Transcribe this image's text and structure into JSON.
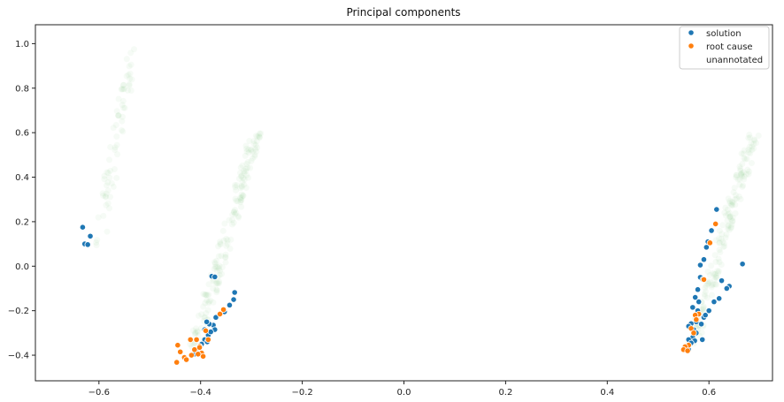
{
  "chart_data": {
    "type": "scatter",
    "title": "Principal components",
    "xlabel": "",
    "ylabel": "",
    "xlim": [
      -0.725,
      0.725
    ],
    "ylim": [
      -0.515,
      1.085
    ],
    "xticks": [
      -0.6,
      -0.4,
      -0.2,
      0.0,
      0.2,
      0.4,
      0.6
    ],
    "xtick_labels": [
      "−0.6",
      "−0.4",
      "−0.2",
      "0.0",
      "0.2",
      "0.4",
      "0.6"
    ],
    "yticks": [
      -0.4,
      -0.2,
      0.0,
      0.2,
      0.4,
      0.6,
      0.8,
      1.0
    ],
    "ytick_labels": [
      "−0.4",
      "−0.2",
      "0.0",
      "0.2",
      "0.4",
      "0.6",
      "0.8",
      "1.0"
    ],
    "grid": false,
    "legend_position": "top-right",
    "series": [
      {
        "name": "unannotated",
        "color": "#8fc98f",
        "opacity": 0.08,
        "clusters": [
          {
            "from": [
              -0.6,
              0.1
            ],
            "to": [
              -0.535,
              0.97
            ],
            "spread": 0.012,
            "count": 70
          },
          {
            "from": [
              -0.41,
              -0.36
            ],
            "to": [
              -0.29,
              0.59
            ],
            "spread": 0.012,
            "count": 170
          },
          {
            "from": [
              0.57,
              -0.33
            ],
            "to": [
              0.69,
              0.61
            ],
            "spread": 0.012,
            "count": 170
          }
        ]
      },
      {
        "name": "solution",
        "color": "#1f77b4",
        "points": [
          [
            -0.632,
            0.175
          ],
          [
            -0.628,
            0.1
          ],
          [
            -0.622,
            0.097
          ],
          [
            -0.617,
            0.135
          ],
          [
            -0.378,
            -0.045
          ],
          [
            -0.372,
            -0.048
          ],
          [
            -0.333,
            -0.118
          ],
          [
            -0.335,
            -0.15
          ],
          [
            -0.343,
            -0.175
          ],
          [
            -0.353,
            -0.205
          ],
          [
            -0.37,
            -0.23
          ],
          [
            -0.375,
            -0.265
          ],
          [
            -0.383,
            -0.26
          ],
          [
            -0.388,
            -0.25
          ],
          [
            -0.392,
            -0.285
          ],
          [
            -0.385,
            -0.31
          ],
          [
            -0.392,
            -0.33
          ],
          [
            -0.398,
            -0.35
          ],
          [
            -0.402,
            -0.365
          ],
          [
            -0.408,
            -0.38
          ],
          [
            -0.412,
            -0.395
          ],
          [
            -0.405,
            -0.392
          ],
          [
            -0.398,
            -0.387
          ],
          [
            -0.372,
            -0.285
          ],
          [
            -0.38,
            -0.295
          ],
          [
            -0.387,
            -0.34
          ],
          [
            0.615,
            0.255
          ],
          [
            0.605,
            0.16
          ],
          [
            0.598,
            0.11
          ],
          [
            0.595,
            0.085
          ],
          [
            0.59,
            0.03
          ],
          [
            0.583,
            0.005
          ],
          [
            0.666,
            0.01
          ],
          [
            0.625,
            -0.065
          ],
          [
            0.64,
            -0.09
          ],
          [
            0.635,
            -0.1
          ],
          [
            0.62,
            -0.145
          ],
          [
            0.61,
            -0.16
          ],
          [
            0.6,
            -0.2
          ],
          [
            0.59,
            -0.23
          ],
          [
            0.583,
            -0.05
          ],
          [
            0.588,
            -0.06
          ],
          [
            0.578,
            -0.105
          ],
          [
            0.573,
            -0.14
          ],
          [
            0.568,
            -0.185
          ],
          [
            0.578,
            -0.2
          ],
          [
            0.575,
            -0.25
          ],
          [
            0.565,
            -0.258
          ],
          [
            0.56,
            -0.27
          ],
          [
            0.57,
            -0.285
          ],
          [
            0.575,
            -0.3
          ],
          [
            0.568,
            -0.32
          ],
          [
            0.56,
            -0.33
          ],
          [
            0.572,
            -0.335
          ],
          [
            0.565,
            -0.345
          ],
          [
            0.558,
            -0.36
          ],
          [
            0.552,
            -0.372
          ],
          [
            0.56,
            -0.375
          ],
          [
            0.585,
            -0.26
          ],
          [
            0.593,
            -0.22
          ],
          [
            0.58,
            -0.16
          ],
          [
            0.587,
            -0.33
          ]
        ]
      },
      {
        "name": "root cause",
        "color": "#ff7f0e",
        "points": [
          [
            -0.445,
            -0.355
          ],
          [
            -0.44,
            -0.385
          ],
          [
            -0.447,
            -0.432
          ],
          [
            -0.432,
            -0.41
          ],
          [
            -0.428,
            -0.42
          ],
          [
            -0.42,
            -0.33
          ],
          [
            -0.418,
            -0.4
          ],
          [
            -0.412,
            -0.375
          ],
          [
            -0.408,
            -0.33
          ],
          [
            -0.402,
            -0.36
          ],
          [
            -0.398,
            -0.39
          ],
          [
            -0.395,
            -0.405
          ],
          [
            -0.39,
            -0.29
          ],
          [
            -0.385,
            -0.33
          ],
          [
            -0.362,
            -0.215
          ],
          [
            -0.355,
            -0.195
          ],
          [
            -0.402,
            -0.365
          ],
          [
            -0.405,
            -0.395
          ],
          [
            0.613,
            0.19
          ],
          [
            0.602,
            0.105
          ],
          [
            0.59,
            -0.06
          ],
          [
            0.58,
            -0.215
          ],
          [
            0.573,
            -0.22
          ],
          [
            0.575,
            -0.24
          ],
          [
            0.565,
            -0.28
          ],
          [
            0.57,
            -0.3
          ],
          [
            0.56,
            -0.355
          ],
          [
            0.553,
            -0.362
          ],
          [
            0.55,
            -0.375
          ],
          [
            0.558,
            -0.38
          ]
        ]
      }
    ],
    "legend": [
      {
        "label": "solution",
        "color": "#1f77b4"
      },
      {
        "label": "root cause",
        "color": "#ff7f0e"
      },
      {
        "label": "unannotated",
        "color": "none"
      }
    ]
  }
}
